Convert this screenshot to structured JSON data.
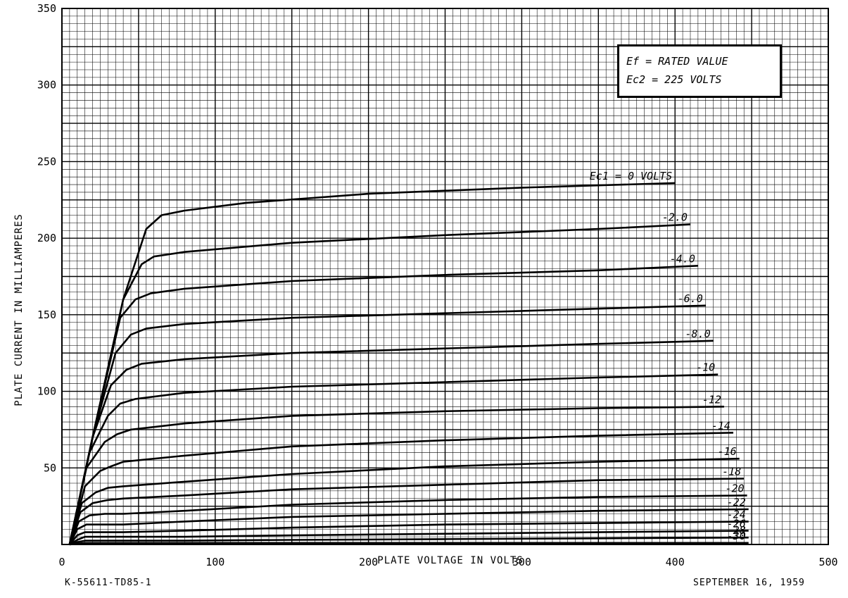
{
  "chart_data": {
    "type": "line",
    "title": "",
    "xlabel": "PLATE VOLTAGE IN VOLTS",
    "ylabel": "PLATE CURRENT IN MILLIAMPERES",
    "xlim": [
      0,
      500
    ],
    "ylim": [
      0,
      350
    ],
    "x_ticks": [
      "0",
      "100",
      "200",
      "300",
      "400",
      "500"
    ],
    "y_ticks": [
      "50",
      "100",
      "150",
      "200",
      "250",
      "300",
      "350"
    ],
    "grid": true,
    "legend_box": {
      "line1": "Ef = RATED VALUE",
      "line2": "Ec2 = 225 VOLTS"
    },
    "series": [
      {
        "name": "Ec1 = 0 VOLTS",
        "label": "Ec1 = 0 VOLTS",
        "x": [
          5,
          20,
          40,
          55,
          65,
          80,
          120,
          200,
          300,
          400
        ],
        "y": [
          0,
          70,
          160,
          206,
          215,
          218,
          223,
          229,
          233,
          236
        ]
      },
      {
        "name": "-2.0",
        "label": "-2.0",
        "x": [
          5,
          20,
          40,
          52,
          60,
          80,
          150,
          250,
          350,
          410
        ],
        "y": [
          0,
          70,
          160,
          183,
          188,
          191,
          197,
          202,
          206,
          209
        ]
      },
      {
        "name": "-4.0",
        "label": "-4.0",
        "x": [
          5,
          20,
          38,
          48,
          58,
          80,
          150,
          250,
          350,
          415
        ],
        "y": [
          0,
          70,
          148,
          160,
          164,
          167,
          172,
          176,
          179,
          182
        ]
      },
      {
        "name": "-6.0",
        "label": "-6.0",
        "x": [
          5,
          20,
          35,
          45,
          55,
          80,
          150,
          250,
          350,
          420
        ],
        "y": [
          0,
          70,
          125,
          137,
          141,
          144,
          148,
          151,
          154,
          156
        ]
      },
      {
        "name": "-8.0",
        "label": "-8.0",
        "x": [
          5,
          20,
          32,
          42,
          52,
          80,
          150,
          250,
          350,
          425
        ],
        "y": [
          0,
          70,
          104,
          114,
          118,
          121,
          125,
          128,
          131,
          133
        ]
      },
      {
        "name": "-10",
        "label": "-10",
        "x": [
          5,
          18,
          30,
          38,
          48,
          80,
          150,
          250,
          350,
          428
        ],
        "y": [
          0,
          60,
          84,
          92,
          95,
          99,
          103,
          106,
          109,
          111
        ]
      },
      {
        "name": "-12",
        "label": "-12",
        "x": [
          5,
          16,
          28,
          36,
          45,
          80,
          150,
          250,
          350,
          432
        ],
        "y": [
          0,
          50,
          67,
          72,
          75,
          79,
          84,
          87,
          89,
          90
        ]
      },
      {
        "name": "-14",
        "label": "-14",
        "x": [
          5,
          15,
          25,
          32,
          40,
          80,
          150,
          250,
          350,
          438
        ],
        "y": [
          0,
          38,
          48,
          51,
          54,
          58,
          64,
          68,
          71,
          73
        ]
      },
      {
        "name": "-16",
        "label": "-16",
        "x": [
          5,
          13,
          22,
          30,
          40,
          80,
          150,
          250,
          350,
          442
        ],
        "y": [
          0,
          27,
          34,
          37,
          38,
          41,
          46,
          51,
          54,
          56
        ]
      },
      {
        "name": "-18",
        "label": "-18",
        "x": [
          5,
          12,
          20,
          30,
          40,
          80,
          150,
          250,
          350,
          445
        ],
        "y": [
          0,
          21,
          27,
          29,
          30,
          32,
          36,
          39,
          42,
          43
        ]
      },
      {
        "name": "-20",
        "label": "-20",
        "x": [
          5,
          11,
          18,
          28,
          40,
          80,
          150,
          250,
          350,
          447
        ],
        "y": [
          0,
          15,
          19,
          20,
          20,
          22,
          26,
          29,
          31,
          32
        ]
      },
      {
        "name": "-22",
        "label": "-22",
        "x": [
          5,
          10,
          16,
          26,
          40,
          80,
          150,
          250,
          350,
          448
        ],
        "y": [
          0,
          10,
          13,
          13,
          13,
          15,
          18,
          20,
          22,
          23
        ]
      },
      {
        "name": "-24",
        "label": "-24",
        "x": [
          5,
          10,
          15,
          25,
          40,
          80,
          150,
          250,
          350,
          448
        ],
        "y": [
          0,
          6,
          8,
          8,
          8,
          9,
          11,
          13,
          14,
          15
        ]
      },
      {
        "name": "-26",
        "label": "-26",
        "x": [
          5,
          10,
          15,
          25,
          40,
          80,
          150,
          250,
          350,
          448
        ],
        "y": [
          0,
          3,
          5,
          5,
          5,
          5,
          6,
          7,
          8,
          9
        ]
      },
      {
        "name": "-28",
        "label": "-28",
        "x": [
          5,
          10,
          15,
          25,
          40,
          80,
          150,
          250,
          350,
          448
        ],
        "y": [
          0,
          1.5,
          2.5,
          2.5,
          2.5,
          2.5,
          3,
          3.5,
          4,
          4.5
        ]
      },
      {
        "name": "-30",
        "label": "-30",
        "x": [
          5,
          10,
          15,
          25,
          40,
          80,
          150,
          250,
          350,
          448
        ],
        "y": [
          0,
          0.5,
          1,
          1,
          1,
          1,
          1,
          1,
          1,
          1
        ]
      }
    ]
  },
  "footer": {
    "left_code": "K-55611-TD85-1",
    "date": "SEPTEMBER 16, 1959"
  }
}
